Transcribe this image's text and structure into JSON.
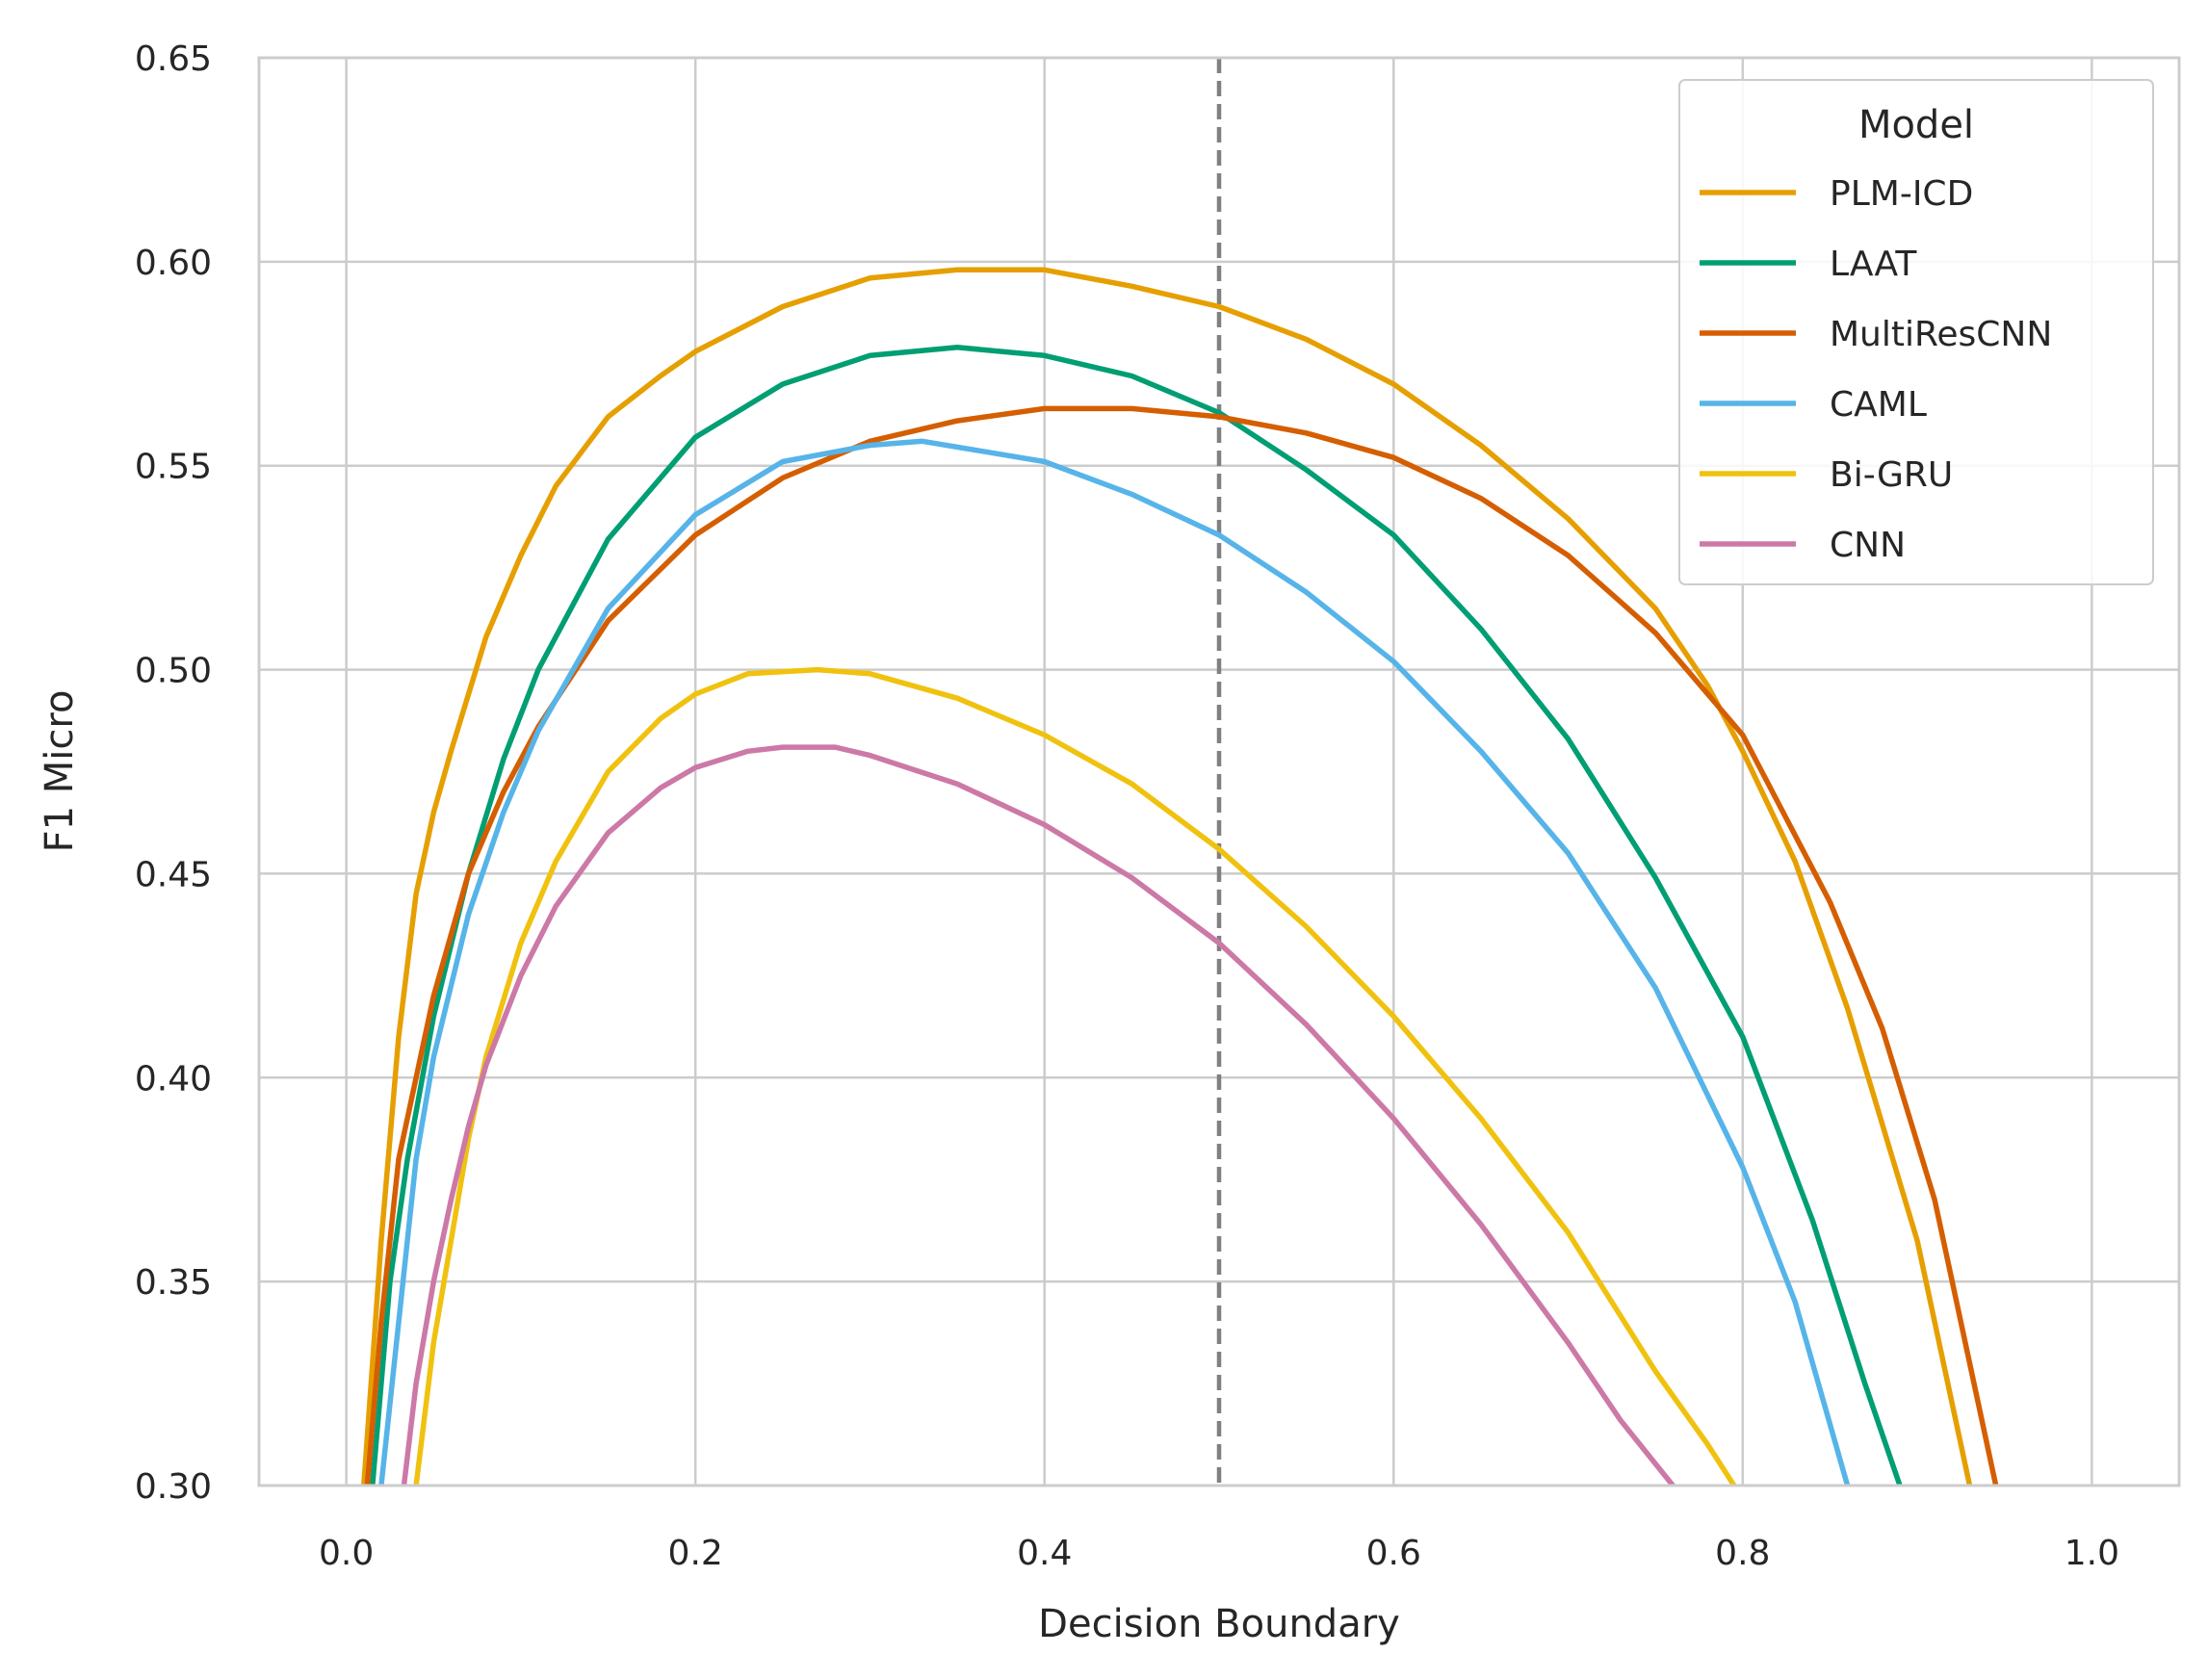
{
  "chart_data": {
    "type": "line",
    "xlabel": "Decision Boundary",
    "ylabel": "F1 Micro",
    "xlim": [
      -0.05,
      1.05
    ],
    "ylim": [
      0.3,
      0.65
    ],
    "x_ticks": [
      0.0,
      0.2,
      0.4,
      0.6,
      0.8,
      1.0
    ],
    "x_tick_labels": [
      "0.0",
      "0.2",
      "0.4",
      "0.6",
      "0.8",
      "1.0"
    ],
    "y_ticks": [
      0.3,
      0.35,
      0.4,
      0.45,
      0.5,
      0.55,
      0.6,
      0.65
    ],
    "y_tick_labels": [
      "0.30",
      "0.35",
      "0.40",
      "0.45",
      "0.50",
      "0.55",
      "0.60",
      "0.65"
    ],
    "grid": true,
    "vline": {
      "x": 0.5,
      "style": "dashed",
      "color": "#808080"
    },
    "legend": {
      "title": "Model",
      "position": "upper right"
    },
    "series": [
      {
        "name": "PLM-ICD",
        "color": "#E69F00",
        "x": [
          0.01,
          0.02,
          0.03,
          0.04,
          0.05,
          0.06,
          0.08,
          0.1,
          0.12,
          0.15,
          0.18,
          0.2,
          0.25,
          0.3,
          0.35,
          0.4,
          0.45,
          0.5,
          0.55,
          0.6,
          0.65,
          0.7,
          0.75,
          0.78,
          0.8,
          0.83,
          0.86,
          0.9,
          0.93
        ],
        "y": [
          0.3,
          0.36,
          0.41,
          0.445,
          0.465,
          0.48,
          0.508,
          0.528,
          0.545,
          0.562,
          0.572,
          0.578,
          0.589,
          0.596,
          0.598,
          0.598,
          0.594,
          0.589,
          0.581,
          0.57,
          0.555,
          0.537,
          0.515,
          0.496,
          0.48,
          0.453,
          0.417,
          0.36,
          0.3
        ]
      },
      {
        "name": "LAAT",
        "color": "#009E73",
        "x": [
          0.015,
          0.025,
          0.035,
          0.05,
          0.07,
          0.09,
          0.11,
          0.15,
          0.2,
          0.25,
          0.3,
          0.35,
          0.4,
          0.45,
          0.5,
          0.55,
          0.6,
          0.65,
          0.7,
          0.75,
          0.8,
          0.84,
          0.87,
          0.89
        ],
        "y": [
          0.3,
          0.35,
          0.38,
          0.415,
          0.45,
          0.478,
          0.5,
          0.532,
          0.557,
          0.57,
          0.577,
          0.579,
          0.577,
          0.572,
          0.563,
          0.549,
          0.533,
          0.51,
          0.483,
          0.449,
          0.41,
          0.365,
          0.325,
          0.3
        ]
      },
      {
        "name": "MultiResCNN",
        "color": "#D55E00",
        "x": [
          0.012,
          0.02,
          0.03,
          0.05,
          0.07,
          0.09,
          0.11,
          0.15,
          0.2,
          0.25,
          0.3,
          0.35,
          0.4,
          0.45,
          0.5,
          0.55,
          0.6,
          0.65,
          0.7,
          0.75,
          0.8,
          0.85,
          0.88,
          0.91,
          0.93,
          0.945
        ],
        "y": [
          0.3,
          0.34,
          0.38,
          0.42,
          0.45,
          0.47,
          0.486,
          0.512,
          0.533,
          0.547,
          0.556,
          0.561,
          0.564,
          0.564,
          0.562,
          0.558,
          0.552,
          0.542,
          0.528,
          0.509,
          0.484,
          0.443,
          0.412,
          0.37,
          0.33,
          0.3
        ]
      },
      {
        "name": "CAML",
        "color": "#56B4E9",
        "x": [
          0.02,
          0.03,
          0.04,
          0.05,
          0.07,
          0.09,
          0.11,
          0.15,
          0.2,
          0.25,
          0.3,
          0.33,
          0.4,
          0.45,
          0.5,
          0.55,
          0.6,
          0.65,
          0.7,
          0.75,
          0.8,
          0.83,
          0.86
        ],
        "y": [
          0.3,
          0.34,
          0.38,
          0.405,
          0.44,
          0.465,
          0.485,
          0.515,
          0.538,
          0.551,
          0.555,
          0.556,
          0.551,
          0.543,
          0.533,
          0.519,
          0.502,
          0.48,
          0.455,
          0.422,
          0.378,
          0.345,
          0.3
        ]
      },
      {
        "name": "Bi-GRU",
        "color": "#F0C20F",
        "x": [
          0.04,
          0.05,
          0.06,
          0.07,
          0.08,
          0.1,
          0.12,
          0.15,
          0.18,
          0.2,
          0.23,
          0.27,
          0.3,
          0.35,
          0.4,
          0.45,
          0.5,
          0.55,
          0.6,
          0.65,
          0.7,
          0.75,
          0.78,
          0.795
        ],
        "y": [
          0.3,
          0.335,
          0.36,
          0.385,
          0.405,
          0.433,
          0.453,
          0.475,
          0.488,
          0.494,
          0.499,
          0.5,
          0.499,
          0.493,
          0.484,
          0.472,
          0.456,
          0.437,
          0.415,
          0.39,
          0.362,
          0.328,
          0.31,
          0.3
        ]
      },
      {
        "name": "CNN",
        "color": "#CC79A7",
        "x": [
          0.033,
          0.04,
          0.05,
          0.06,
          0.07,
          0.08,
          0.1,
          0.12,
          0.15,
          0.18,
          0.2,
          0.23,
          0.25,
          0.28,
          0.3,
          0.35,
          0.4,
          0.45,
          0.5,
          0.55,
          0.6,
          0.65,
          0.7,
          0.73,
          0.76
        ],
        "y": [
          0.3,
          0.325,
          0.35,
          0.37,
          0.388,
          0.403,
          0.425,
          0.442,
          0.46,
          0.471,
          0.476,
          0.48,
          0.481,
          0.481,
          0.479,
          0.472,
          0.462,
          0.449,
          0.433,
          0.413,
          0.39,
          0.364,
          0.335,
          0.316,
          0.3
        ]
      }
    ]
  }
}
